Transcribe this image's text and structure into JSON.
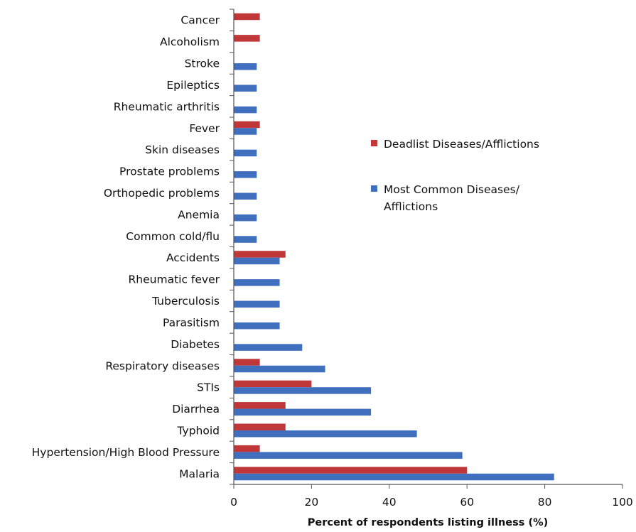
{
  "chart_data": {
    "type": "bar",
    "orientation": "horizontal",
    "title": "",
    "xlabel": "Percent of respondents listing illness (%)",
    "ylabel": "",
    "xlim": [
      0,
      100
    ],
    "xticks": [
      0,
      20,
      40,
      60,
      80,
      100
    ],
    "grid": false,
    "legend_position": "right",
    "categories": [
      "Cancer",
      "Alcoholism",
      "Stroke",
      "Epileptics",
      "Rheumatic arthritis",
      "Fever",
      "Skin diseases",
      "Prostate problems",
      "Orthopedic problems",
      "Anemia",
      "Common cold/flu",
      "Accidents",
      "Rheumatic fever",
      "Tuberculosis",
      "Parasitism",
      "Diabetes",
      "Respiratory diseases",
      "STIs",
      "Diarrhea",
      "Typhoid",
      "Hypertension/High Blood Pressure",
      "Malaria"
    ],
    "series": [
      {
        "name": "Deadlist Diseases/Afflictions",
        "color": "#c0373a",
        "values": [
          6.7,
          6.7,
          0,
          0,
          0,
          6.7,
          0,
          0,
          0,
          0,
          0,
          13.3,
          0,
          0,
          0,
          0,
          6.7,
          20,
          13.3,
          13.3,
          6.7,
          60
        ]
      },
      {
        "name": "Most Common Diseases/ Afflictions",
        "color": "#3f6fbd",
        "values": [
          0,
          0,
          5.9,
          5.9,
          5.9,
          5.9,
          5.9,
          5.9,
          5.9,
          5.9,
          5.9,
          11.8,
          11.8,
          11.8,
          11.8,
          17.6,
          23.5,
          35.3,
          35.3,
          47.1,
          58.8,
          82.4
        ]
      }
    ],
    "legend_lines": [
      [
        "Deadlist Diseases/Afflictions"
      ],
      [
        "Most Common Diseases/",
        "Afflictions"
      ]
    ]
  }
}
